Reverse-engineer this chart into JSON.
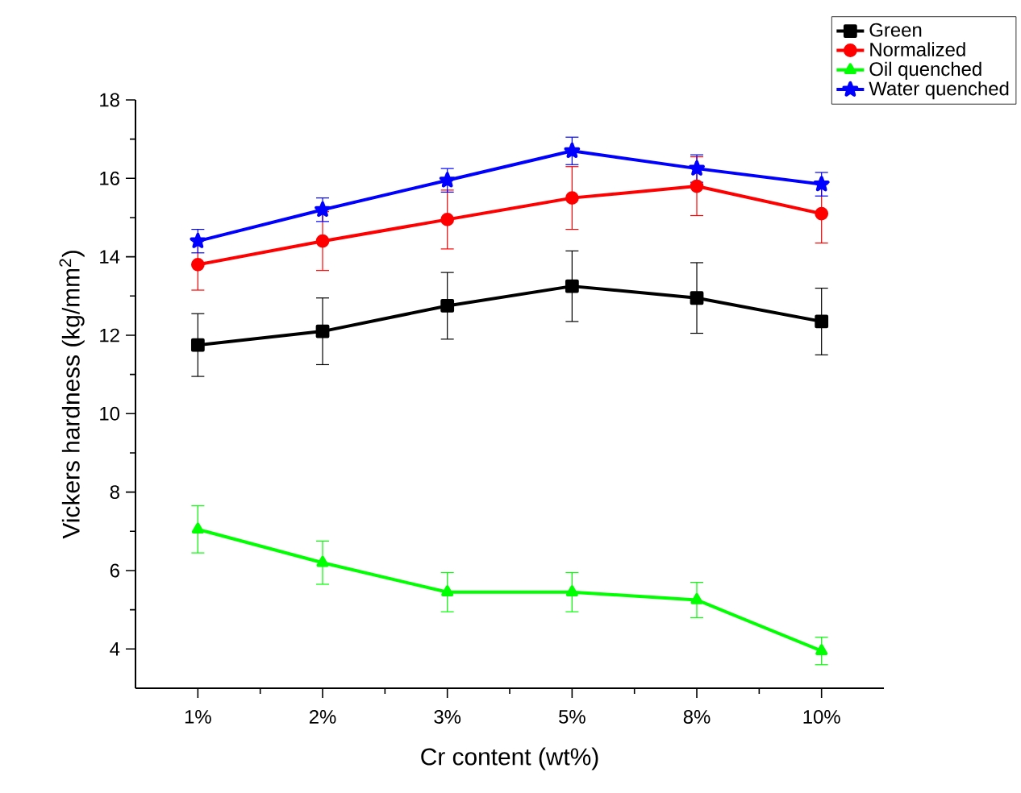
{
  "chart_data": {
    "type": "line",
    "xlabel": "Cr content (wt%)",
    "ylabel": "Vickers hardness (kg/mm$^{2}$)",
    "categories": [
      "1%",
      "2%",
      "3%",
      "5%",
      "8%",
      "10%"
    ],
    "series": [
      {
        "name": "Green",
        "color": "#000000",
        "marker": "square",
        "values": [
          11.75,
          12.1,
          12.75,
          13.25,
          12.95,
          12.35
        ],
        "errors": [
          0.8,
          0.85,
          0.85,
          0.9,
          0.9,
          0.85
        ]
      },
      {
        "name": "Normalized",
        "color": "#ff0000",
        "marker": "circle",
        "values": [
          13.8,
          14.4,
          14.95,
          15.5,
          15.8,
          15.1
        ],
        "errors": [
          0.65,
          0.75,
          0.75,
          0.8,
          0.75,
          0.75
        ]
      },
      {
        "name": "Oil quenched",
        "color": "#00ff00",
        "marker": "triangle",
        "values": [
          7.05,
          6.2,
          5.45,
          5.45,
          5.25,
          3.95
        ],
        "errors": [
          0.6,
          0.55,
          0.5,
          0.5,
          0.45,
          0.35
        ]
      },
      {
        "name": "Water quenched",
        "color": "#0000ff",
        "marker": "star",
        "values": [
          14.4,
          15.2,
          15.95,
          16.7,
          16.25,
          15.85
        ],
        "errors": [
          0.3,
          0.3,
          0.3,
          0.35,
          0.35,
          0.3
        ]
      }
    ],
    "ylim": [
      3,
      18
    ],
    "yticks": [
      4,
      6,
      8,
      10,
      12,
      14,
      16,
      18
    ],
    "legend": "top right",
    "grid": false,
    "line_style": "solid"
  }
}
